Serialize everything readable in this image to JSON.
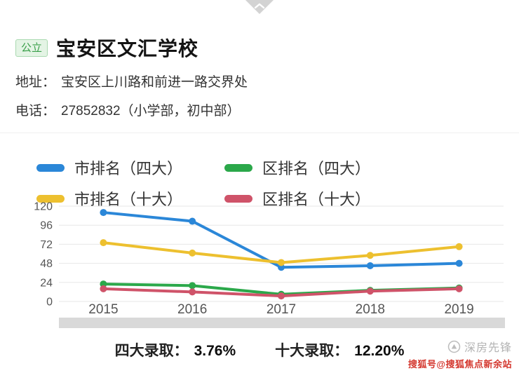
{
  "header": {
    "badge": "公立",
    "title": "宝安区文汇学校"
  },
  "info": {
    "address_label": "地址：",
    "address": "宝安区上川路和前进一路交界处",
    "phone_label": "电话：",
    "phone": "27852832（小学部，初中部）"
  },
  "chart_data": {
    "type": "line",
    "x": [
      "2015",
      "2016",
      "2017",
      "2018",
      "2019"
    ],
    "series": [
      {
        "name": "市排名（四大）",
        "color": "#2b87d8",
        "values": [
          112,
          101,
          43,
          45,
          48
        ]
      },
      {
        "name": "区排名（四大）",
        "color": "#2ba84a",
        "values": [
          22,
          20,
          9,
          14,
          17
        ]
      },
      {
        "name": "市排名（十大）",
        "color": "#edc02f",
        "values": [
          74,
          61,
          49,
          58,
          69
        ]
      },
      {
        "name": "区排名（十大）",
        "color": "#cf5369",
        "values": [
          16,
          12,
          7,
          13,
          16
        ]
      }
    ],
    "ylim": [
      0,
      120
    ],
    "yticks": [
      0,
      24,
      48,
      72,
      96,
      120
    ],
    "grid": true,
    "legend_position": "top",
    "title": "",
    "xlabel": "",
    "ylabel": ""
  },
  "stats": [
    {
      "label": "四大录取：",
      "value": "3.76%"
    },
    {
      "label": "十大录取：",
      "value": "12.20%"
    }
  ],
  "watermark": {
    "brand": "深房先锋",
    "source": "搜狐号@搜狐焦点新余站"
  },
  "theme": {
    "badge_green": "#3aa04a",
    "watermark_red": "#d4372e"
  }
}
